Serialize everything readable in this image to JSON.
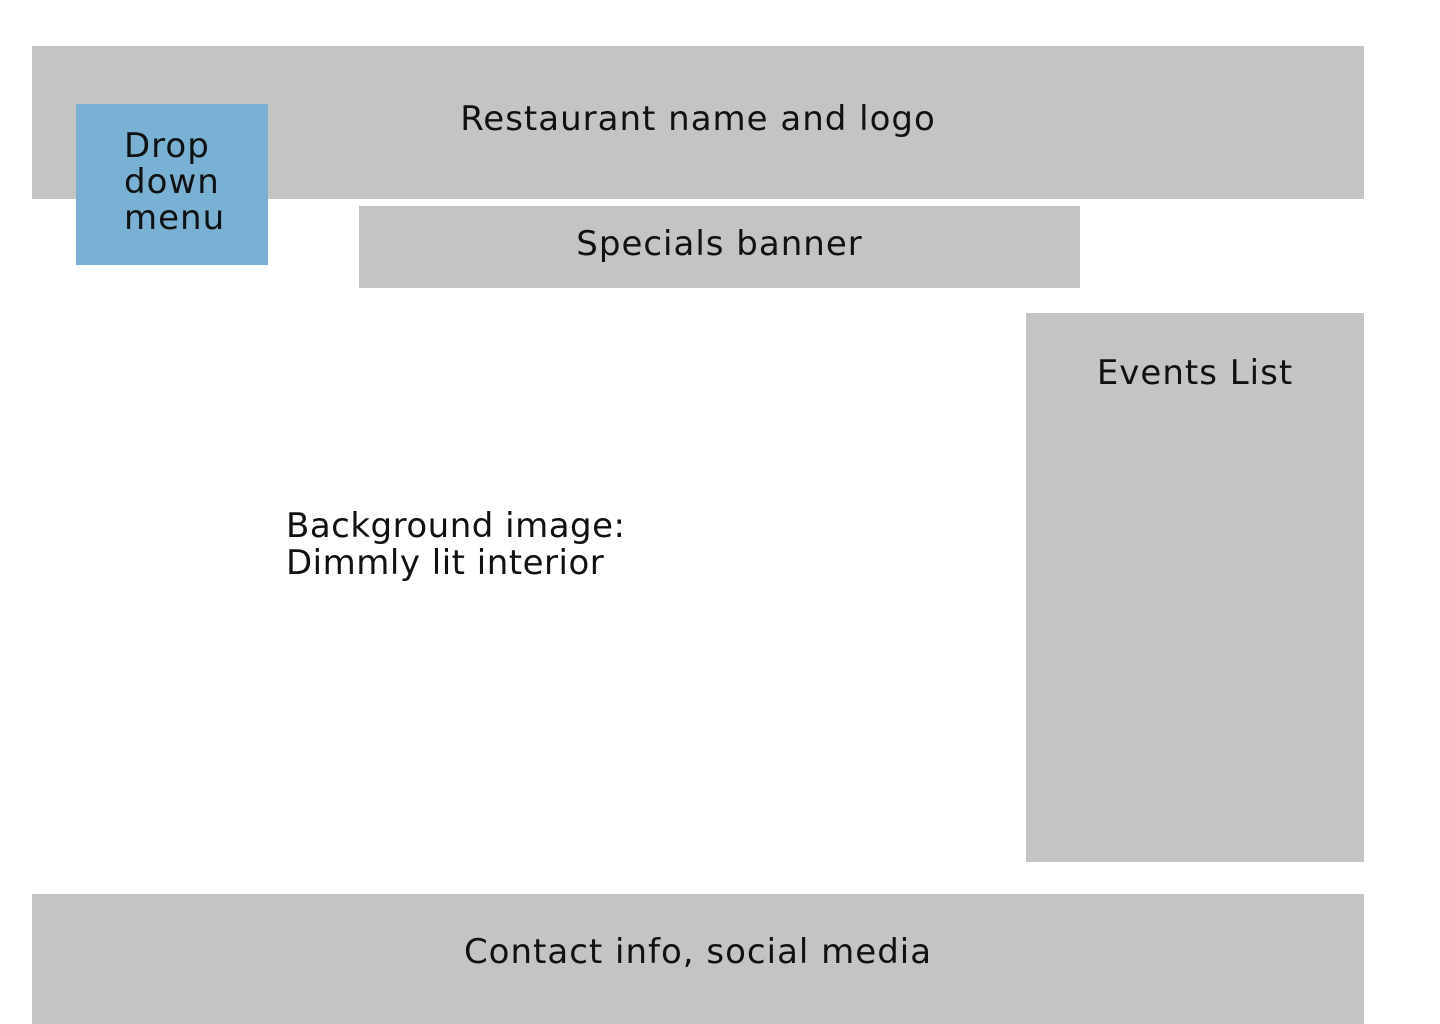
{
  "header": {
    "label": "Restaurant name and logo"
  },
  "dropdown": {
    "label": "Drop\ndown\nmenu"
  },
  "specials": {
    "label": "Specials banner"
  },
  "background_note": {
    "line1": "Background image:",
    "line2": "Dimmly lit interior"
  },
  "events": {
    "label": "Events List"
  },
  "footer": {
    "label": "Contact info, social media"
  },
  "colors": {
    "placeholder_gray": "#c4c4c4",
    "dropdown_blue": "#78b1d3",
    "background": "#ffffff"
  }
}
